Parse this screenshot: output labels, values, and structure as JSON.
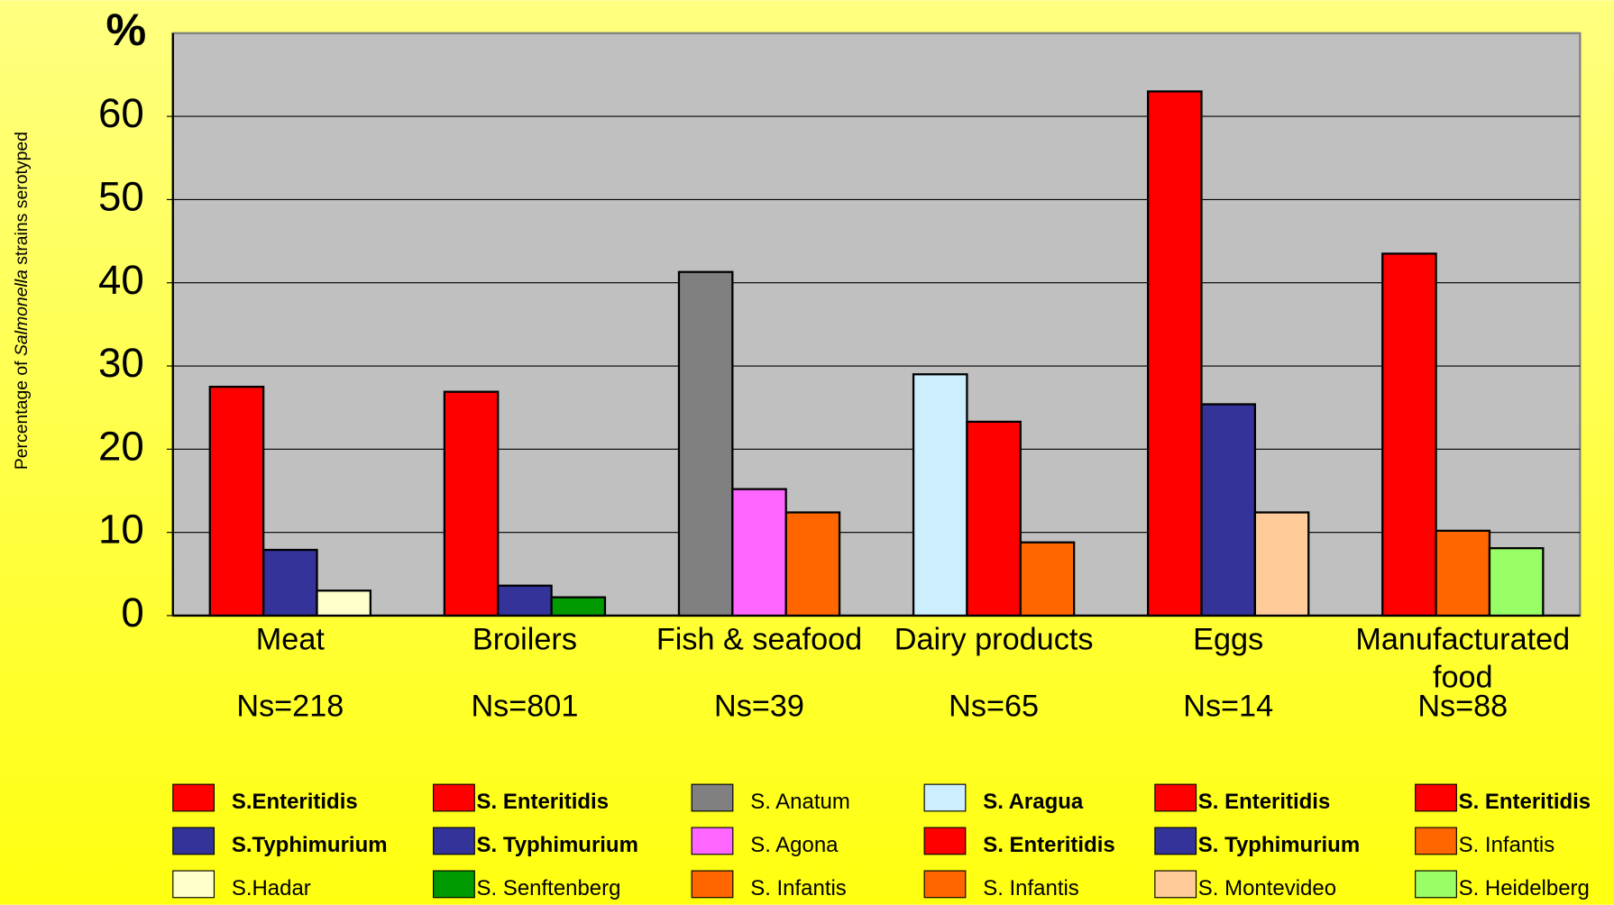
{
  "chart_data": {
    "type": "bar",
    "y_unit": "%",
    "ylabel": [
      "Percentage of ",
      "Salmonella",
      " strains serotyped"
    ],
    "ylim": [
      0,
      70
    ],
    "yticks": [
      0,
      10,
      20,
      30,
      40,
      50,
      60
    ],
    "grid": true,
    "plot_color": "#c0c0c0",
    "categories": [
      "Meat",
      "Broilers",
      "Fish &  seafood",
      "Dairy products",
      "Eggs",
      "Manufacturated food"
    ],
    "counts": [
      "Ns=218",
      "Ns=801",
      "Ns=39",
      "Ns=65",
      "Ns=14",
      "Ns=88"
    ],
    "groups": [
      {
        "series": [
          {
            "name": "S.Enteritidis",
            "color": "#ff0000",
            "value": 27.5,
            "bold": true
          },
          {
            "name": "S.Typhimurium",
            "color": "#333399",
            "value": 7.9,
            "bold": true
          },
          {
            "name": "S.Hadar",
            "color": "#ffffcc",
            "value": 3.0,
            "bold": false
          }
        ]
      },
      {
        "series": [
          {
            "name": "S. Enteritidis",
            "color": "#ff0000",
            "value": 26.9,
            "bold": true
          },
          {
            "name": "S. Typhimurium",
            "color": "#333399",
            "value": 3.6,
            "bold": true
          },
          {
            "name": "S. Senftenberg",
            "color": "#009900",
            "value": 2.2,
            "bold": false
          }
        ]
      },
      {
        "series": [
          {
            "name": "S. Anatum",
            "color": "#808080",
            "value": 41.3,
            "bold": false
          },
          {
            "name": "S. Agona",
            "color": "#ff66ff",
            "value": 15.2,
            "bold": false
          },
          {
            "name": "S. Infantis",
            "color": "#ff6600",
            "value": 12.4,
            "bold": false
          }
        ]
      },
      {
        "series": [
          {
            "name": "S. Aragua",
            "color": "#cceeff",
            "value": 29.0,
            "bold": true
          },
          {
            "name": "S. Enteritidis",
            "color": "#ff0000",
            "value": 23.3,
            "bold": true
          },
          {
            "name": "S. Infantis",
            "color": "#ff6600",
            "value": 8.8,
            "bold": false
          }
        ]
      },
      {
        "series": [
          {
            "name": "S. Enteritidis",
            "color": "#ff0000",
            "value": 63.0,
            "bold": true
          },
          {
            "name": "S. Typhimurium",
            "color": "#333399",
            "value": 25.4,
            "bold": true
          },
          {
            "name": "S. Montevideo",
            "color": "#ffcc99",
            "value": 12.4,
            "bold": false
          }
        ]
      },
      {
        "series": [
          {
            "name": "S. Enteritidis",
            "color": "#ff0000",
            "value": 43.5,
            "bold": true
          },
          {
            "name": "S. Infantis",
            "color": "#ff6600",
            "value": 10.2,
            "bold": false
          },
          {
            "name": "S. Heidelberg",
            "color": "#99ff66",
            "value": 8.1,
            "bold": false
          }
        ]
      }
    ]
  }
}
